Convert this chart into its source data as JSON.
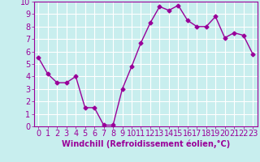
{
  "x": [
    0,
    1,
    2,
    3,
    4,
    5,
    6,
    7,
    8,
    9,
    10,
    11,
    12,
    13,
    14,
    15,
    16,
    17,
    18,
    19,
    20,
    21,
    22,
    23
  ],
  "y": [
    5.5,
    4.2,
    3.5,
    3.5,
    4.0,
    1.5,
    1.5,
    0.1,
    0.1,
    3.0,
    4.8,
    6.7,
    8.3,
    9.6,
    9.3,
    9.7,
    8.5,
    8.0,
    8.0,
    8.8,
    7.1,
    7.5,
    7.3,
    5.8
  ],
  "line_color": "#990099",
  "marker": "D",
  "marker_size": 2.5,
  "line_width": 1.0,
  "background_color": "#c8eeee",
  "grid_color": "#ffffff",
  "xlabel": "Windchill (Refroidissement éolien,°C)",
  "xlabel_color": "#990099",
  "xlim": [
    -0.5,
    23.5
  ],
  "ylim": [
    0,
    10
  ],
  "xticks": [
    0,
    1,
    2,
    3,
    4,
    5,
    6,
    7,
    8,
    9,
    10,
    11,
    12,
    13,
    14,
    15,
    16,
    17,
    18,
    19,
    20,
    21,
    22,
    23
  ],
  "yticks": [
    0,
    1,
    2,
    3,
    4,
    5,
    6,
    7,
    8,
    9,
    10
  ],
  "tick_color": "#990099",
  "axis_color": "#990099",
  "font_size_xlabel": 7,
  "font_size_ticks": 7
}
